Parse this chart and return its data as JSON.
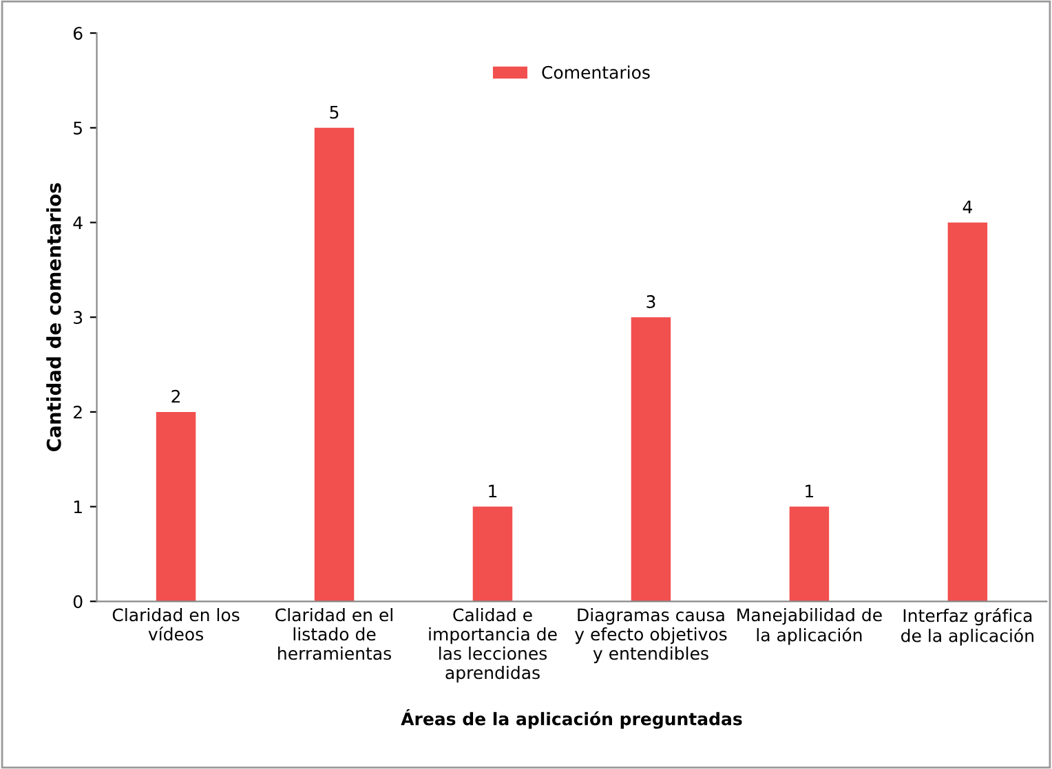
{
  "chart_data": {
    "type": "bar",
    "categories": [
      "Claridad en los\nvídeos",
      "Claridad en el\nlistado de\nherramientas",
      "Calidad e\nimportancia de\nlas lecciones\naprendidas",
      "Diagramas causa\ny efecto objetivos\ny entendibles",
      "Manejabilidad de\nla aplicación",
      "Interfaz gráfica\nde la aplicación"
    ],
    "series": [
      {
        "name": "Comentarios",
        "color": "#f24f4f",
        "values": [
          2,
          5,
          1,
          3,
          1,
          4
        ]
      }
    ],
    "xlabel": "Áreas de la aplicación preguntadas",
    "ylabel": "Cantidad de comentarios",
    "ylim": [
      0,
      6
    ],
    "yticks": [
      0,
      1,
      2,
      3,
      4,
      5,
      6
    ],
    "grid": false,
    "legend": "top",
    "data_labels": true
  }
}
